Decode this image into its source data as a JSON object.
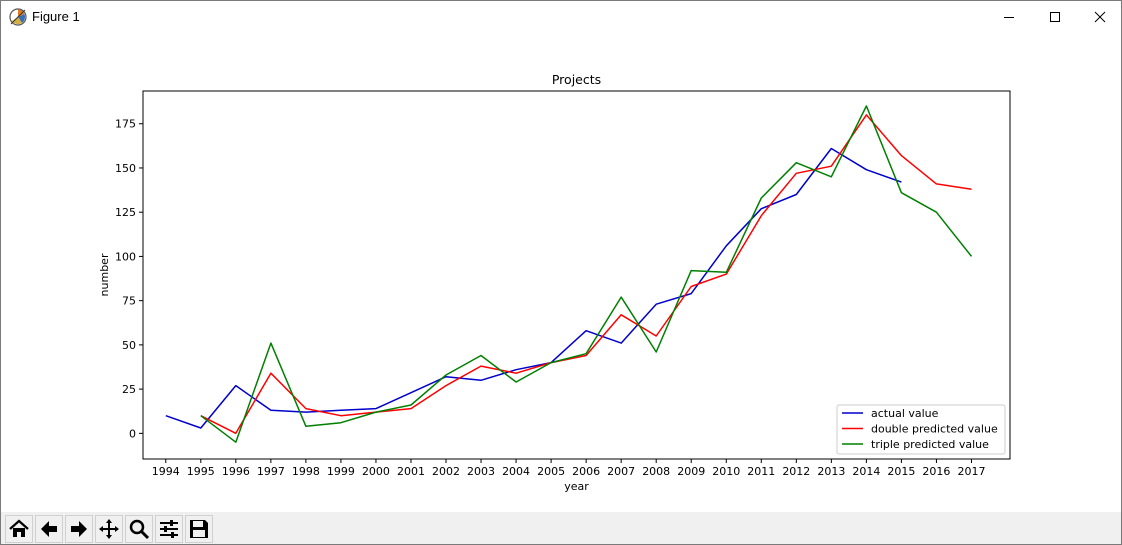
{
  "window": {
    "title": "Figure 1",
    "icon": "matplotlib-icon",
    "controls": [
      "minimize-icon",
      "maximize-icon",
      "close-icon"
    ]
  },
  "toolbar": {
    "tools": [
      "home-icon",
      "back-arrow-icon",
      "forward-arrow-icon",
      "pan-icon",
      "zoom-icon",
      "configure-subplots-icon",
      "save-icon"
    ]
  },
  "chart_data": {
    "type": "line",
    "title": "Projects",
    "xlabel": "year",
    "ylabel": "number",
    "x": [
      1994,
      1995,
      1996,
      1997,
      1998,
      1999,
      2000,
      2001,
      2002,
      2003,
      2004,
      2005,
      2006,
      2007,
      2008,
      2009,
      2010,
      2011,
      2012,
      2013,
      2014,
      2015,
      2016,
      2017
    ],
    "xticks": [
      "1994",
      "1995",
      "1996",
      "1997",
      "1998",
      "1999",
      "2000",
      "2001",
      "2002",
      "2003",
      "2004",
      "2005",
      "2006",
      "2007",
      "2008",
      "2009",
      "2010",
      "2011",
      "2012",
      "2013",
      "2014",
      "2015",
      "2016",
      "2017"
    ],
    "yticks": [
      0,
      25,
      50,
      75,
      100,
      125,
      150,
      175
    ],
    "xlim": [
      1993.35,
      2018.1
    ],
    "ylim": [
      -14.5,
      193.5
    ],
    "grid": false,
    "legend_position": "lower-right",
    "series": [
      {
        "name": "actual value",
        "color": "#0000cc",
        "x": [
          1994,
          1995,
          1996,
          1997,
          1998,
          1999,
          2000,
          2001,
          2002,
          2003,
          2004,
          2005,
          2006,
          2007,
          2008,
          2009,
          2010,
          2011,
          2012,
          2013,
          2014,
          2015
        ],
        "values": [
          10,
          3,
          27,
          13,
          12,
          13,
          14,
          23,
          32,
          30,
          36,
          40,
          58,
          51,
          73,
          79,
          106,
          127,
          135,
          161,
          149,
          142
        ]
      },
      {
        "name": "double predicted value",
        "color": "#ff0000",
        "x": [
          1995,
          1996,
          1997,
          1998,
          1999,
          2000,
          2001,
          2002,
          2003,
          2004,
          2005,
          2006,
          2007,
          2008,
          2009,
          2010,
          2011,
          2012,
          2013,
          2014,
          2015,
          2016,
          2017
        ],
        "values": [
          10,
          0,
          34,
          14,
          10,
          12,
          14,
          27,
          38,
          34,
          40,
          44,
          67,
          55,
          83,
          90,
          123,
          147,
          151,
          180,
          157,
          141,
          138
        ]
      },
      {
        "name": "triple predicted value",
        "color": "#008000",
        "x": [
          1995,
          1996,
          1997,
          1998,
          1999,
          2000,
          2001,
          2002,
          2003,
          2004,
          2005,
          2006,
          2007,
          2008,
          2009,
          2010,
          2011,
          2012,
          2013,
          2014,
          2015,
          2016,
          2017
        ],
        "values": [
          10,
          -5,
          51,
          4,
          6,
          12,
          16,
          33,
          44,
          29,
          40,
          45,
          77,
          46,
          92,
          91,
          133,
          153,
          145,
          185,
          136,
          125,
          100
        ]
      }
    ]
  }
}
